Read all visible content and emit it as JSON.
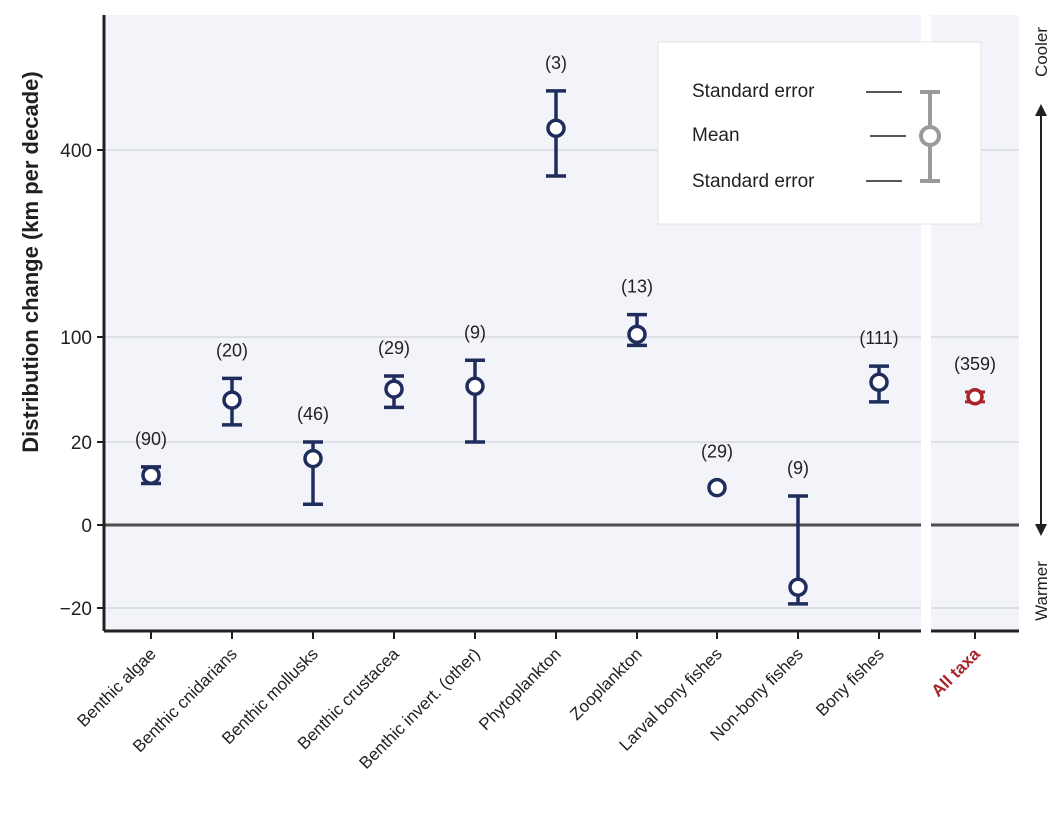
{
  "chart_data": {
    "type": "scatter",
    "description_style": "mean with standard-error bars, broken y axis",
    "ylabel": "Distribution change (km per decade)",
    "yticks": [
      {
        "label": "400",
        "value": 400
      },
      {
        "label": "100",
        "value": 100
      },
      {
        "label": "20",
        "value": 20
      },
      {
        "label": "0",
        "value": 0
      },
      {
        "label": "−20",
        "value": -20
      }
    ],
    "categories": [
      "Benthic algae",
      "Benthic cnidarians",
      "Benthic mollusks",
      "Benthic crustacea",
      "Benthic invert. (other)",
      "Phytoplankton",
      "Zooplankton",
      "Larval bony fishes",
      "Non-bony fishes",
      "Bony fishes",
      "All taxa"
    ],
    "series": [
      {
        "counts": [
          "(90)",
          "(20)",
          "(46)",
          "(29)",
          "(9)",
          "(3)",
          "(13)",
          "(29)",
          "(9)",
          "(111)",
          "(359)"
        ],
        "mean": [
          12,
          38,
          16,
          45,
          47,
          470,
          102,
          9,
          -15,
          50,
          40
        ],
        "se_low": [
          10,
          26,
          5,
          34,
          20,
          330,
          88,
          null,
          -19,
          37,
          37
        ],
        "se_high": [
          14,
          53,
          20,
          55,
          70,
          620,
          118,
          null,
          7,
          64,
          43
        ]
      }
    ],
    "highlight_category": "All taxa",
    "side_labels": {
      "top": "Cooler",
      "bottom": "Warmer"
    },
    "legend": {
      "upper": "Standard error",
      "middle": "Mean",
      "lower": "Standard error",
      "placement": "top-right"
    },
    "grid": true
  },
  "colors": {
    "series": "#1f2d5c",
    "highlight": "#a8262b",
    "legend_glyph": "#9a9a9a",
    "panel_bg": "#f2f4fa",
    "grid": "#c9ccd4"
  }
}
